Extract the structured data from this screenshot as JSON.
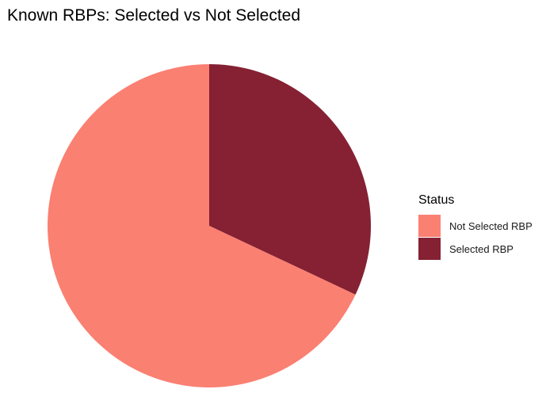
{
  "chart_data": {
    "type": "pie",
    "title": "Known RBPs: Selected vs Not Selected",
    "legend_title": "Status",
    "legend_position": "right",
    "start": "12 o'clock",
    "direction": "clockwise",
    "slices": [
      {
        "label": "Selected RBP",
        "value": 32,
        "color": "#852133"
      },
      {
        "label": "Not Selected RBP",
        "value": 68,
        "color": "#FA8072"
      }
    ],
    "legend": [
      {
        "label": "Not Selected RBP",
        "color": "#FA8072"
      },
      {
        "label": "Selected RBP",
        "color": "#852133"
      }
    ]
  }
}
